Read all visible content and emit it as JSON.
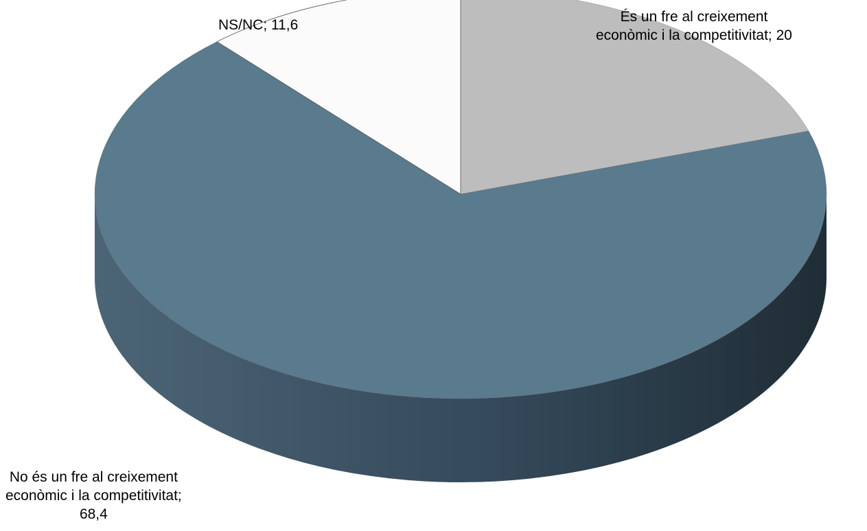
{
  "chart_data": {
    "type": "pie",
    "style": "3d",
    "title": "",
    "slices": [
      {
        "label_lines": [
          "És un fre al creixement",
          "econòmic i la competitivitat; 20"
        ],
        "category": "És un fre al creixement econòmic i la competitivitat",
        "value": 20,
        "color": "#bdbdbd"
      },
      {
        "label_lines": [
          "No és un fre al creixement",
          "econòmic i la competitivitat;",
          "68,4"
        ],
        "category": "No és un fre al creixement econòmic i la competitivitat",
        "value": 68.4,
        "color": "#5a7a8e"
      },
      {
        "label_lines": [
          "NS/NC; 11,6"
        ],
        "category": "NS/NC",
        "value": 11.6,
        "color": "#fbfbfb"
      }
    ],
    "start_angle": "12 o'clock",
    "direction": "clockwise",
    "legend": "none"
  }
}
